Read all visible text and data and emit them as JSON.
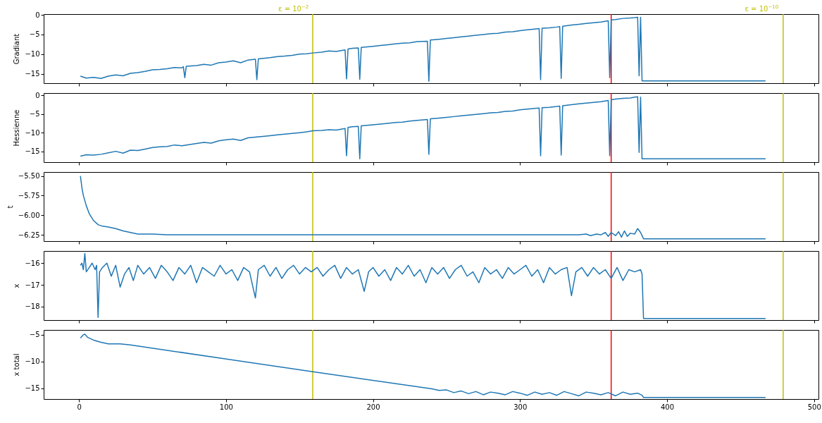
{
  "chart_data": [
    {
      "type": "line",
      "ylabel": "Gradiant",
      "xlim": [
        -24,
        503
      ],
      "xticks": [
        0,
        100,
        200,
        300,
        400,
        500
      ],
      "ylim": [
        -17.4,
        0.2
      ],
      "yticks": [
        -15,
        -10,
        -5,
        0
      ],
      "tick_labels": "y",
      "ref_lines": [
        {
          "axis": "x",
          "value": 159,
          "color": "#bfbf00"
        },
        {
          "axis": "x",
          "value": 362,
          "color": "#ff0000"
        },
        {
          "axis": "x",
          "value": 479,
          "color": "#bfbf00"
        }
      ],
      "annotations": [
        "ε = 10$^{−2}$",
        "ε = 10$^{−10}$"
      ],
      "series": [
        {
          "color": "#1f77b4",
          "x": [
            1,
            5,
            10,
            15,
            20,
            25,
            30,
            35,
            40,
            45,
            50,
            55,
            60,
            65,
            70,
            71,
            72,
            73,
            80,
            85,
            90,
            95,
            100,
            105,
            110,
            115,
            120,
            121,
            122,
            130,
            135,
            140,
            145,
            150,
            155,
            159,
            165,
            170,
            175,
            181,
            182,
            183,
            186,
            190,
            191,
            192,
            200,
            205,
            210,
            215,
            220,
            225,
            230,
            237,
            238,
            239,
            245,
            250,
            255,
            260,
            265,
            270,
            275,
            280,
            285,
            290,
            295,
            300,
            305,
            310,
            313,
            314,
            315,
            320,
            325,
            327,
            328,
            329,
            335,
            340,
            345,
            350,
            355,
            360,
            361,
            362,
            365,
            370,
            375,
            378,
            380,
            381,
            382,
            383,
            384,
            467
          ],
          "values": [
            -15.6,
            -16.1,
            -15.9,
            -16.2,
            -15.6,
            -15.3,
            -15.5,
            -14.9,
            -14.7,
            -14.4,
            -14.0,
            -13.9,
            -13.7,
            -13.4,
            -13.5,
            -13.2,
            -16.0,
            -13.1,
            -12.9,
            -12.6,
            -12.8,
            -12.2,
            -12.0,
            -11.7,
            -12.2,
            -11.5,
            -11.3,
            -16.5,
            -11.2,
            -10.9,
            -10.6,
            -10.5,
            -10.3,
            -10.0,
            -9.9,
            -9.7,
            -9.5,
            -9.2,
            -9.3,
            -8.9,
            -16.3,
            -8.7,
            -8.5,
            -8.4,
            -16.4,
            -8.3,
            -8.0,
            -7.8,
            -7.6,
            -7.4,
            -7.2,
            -7.1,
            -6.8,
            -6.7,
            -16.9,
            -6.4,
            -6.2,
            -6.0,
            -5.8,
            -5.6,
            -5.4,
            -5.2,
            -5.0,
            -4.8,
            -4.7,
            -4.4,
            -4.3,
            -4.0,
            -3.8,
            -3.6,
            -3.5,
            -16.5,
            -3.4,
            -3.3,
            -3.1,
            -3.0,
            -16.2,
            -2.9,
            -2.6,
            -2.4,
            -2.2,
            -2.0,
            -1.8,
            -1.5,
            -16.0,
            -1.3,
            -1.2,
            -0.9,
            -0.8,
            -0.7,
            -0.6,
            -15.5,
            -0.6,
            -16.8,
            -16.8,
            -16.8
          ]
        }
      ]
    },
    {
      "type": "line",
      "ylabel": "Hessienne",
      "xlim": [
        -24,
        503
      ],
      "xticks": [
        0,
        100,
        200,
        300,
        400,
        500
      ],
      "ylim": [
        -17.9,
        0.6
      ],
      "yticks": [
        -15,
        -10,
        -5,
        0
      ],
      "tick_labels": "y",
      "ref_lines": [
        {
          "axis": "x",
          "value": 159,
          "color": "#bfbf00"
        },
        {
          "axis": "x",
          "value": 362,
          "color": "#ff0000"
        },
        {
          "axis": "x",
          "value": 479,
          "color": "#bfbf00"
        }
      ],
      "series": [
        {
          "color": "#1f77b4",
          "x": [
            1,
            5,
            10,
            15,
            20,
            25,
            30,
            35,
            40,
            45,
            50,
            55,
            60,
            65,
            70,
            80,
            85,
            90,
            95,
            100,
            105,
            110,
            115,
            120,
            130,
            135,
            140,
            145,
            150,
            155,
            159,
            165,
            170,
            175,
            181,
            182,
            183,
            186,
            190,
            191,
            192,
            200,
            205,
            210,
            215,
            220,
            225,
            230,
            237,
            238,
            239,
            245,
            250,
            255,
            260,
            265,
            270,
            275,
            280,
            285,
            290,
            295,
            300,
            305,
            310,
            313,
            314,
            315,
            320,
            325,
            327,
            328,
            329,
            335,
            340,
            345,
            350,
            355,
            360,
            361,
            362,
            365,
            370,
            375,
            378,
            380,
            381,
            382,
            383,
            384,
            467
          ],
          "values": [
            -16.3,
            -15.9,
            -16.0,
            -15.8,
            -15.4,
            -15.0,
            -15.5,
            -14.7,
            -14.8,
            -14.4,
            -14.0,
            -13.8,
            -13.7,
            -13.3,
            -13.5,
            -12.9,
            -12.6,
            -12.8,
            -12.2,
            -11.9,
            -11.7,
            -12.1,
            -11.4,
            -11.2,
            -10.8,
            -10.6,
            -10.4,
            -10.2,
            -10.0,
            -9.8,
            -9.5,
            -9.4,
            -9.2,
            -9.3,
            -8.9,
            -16.2,
            -8.6,
            -8.4,
            -8.3,
            -17.0,
            -8.2,
            -7.9,
            -7.7,
            -7.5,
            -7.3,
            -7.2,
            -6.9,
            -6.7,
            -6.5,
            -15.8,
            -6.3,
            -6.1,
            -5.9,
            -5.7,
            -5.5,
            -5.3,
            -5.1,
            -4.9,
            -4.7,
            -4.6,
            -4.3,
            -4.2,
            -3.9,
            -3.7,
            -3.5,
            -3.4,
            -16.2,
            -3.3,
            -3.2,
            -3.0,
            -2.9,
            -16.0,
            -2.8,
            -2.5,
            -2.3,
            -2.1,
            -1.9,
            -1.7,
            -1.4,
            -16.2,
            -1.2,
            -1.0,
            -0.8,
            -0.7,
            -0.5,
            -0.4,
            -15.3,
            -0.5,
            -17.0,
            -17.0,
            -17.0
          ]
        }
      ]
    },
    {
      "type": "line",
      "ylabel": "t",
      "xlim": [
        -24,
        503
      ],
      "xticks": [
        0,
        100,
        200,
        300,
        400,
        500
      ],
      "ylim": [
        -6.33,
        -5.45
      ],
      "yticks": [
        {
          "value": -6.25,
          "label": "−6.25"
        },
        {
          "value": -6,
          "label": "−6.00"
        },
        {
          "value": -5.75,
          "label": "−5.75"
        },
        {
          "value": -5.5,
          "label": "−5.50"
        }
      ],
      "tick_labels": "y",
      "ref_lines": [
        {
          "axis": "x",
          "value": 159,
          "color": "#bfbf00"
        },
        {
          "axis": "x",
          "value": 362,
          "color": "#ff0000"
        },
        {
          "axis": "x",
          "value": 479,
          "color": "#bfbf00"
        }
      ],
      "series": [
        {
          "color": "#1f77b4",
          "x": [
            1,
            2,
            3,
            5,
            7,
            10,
            13,
            16,
            20,
            25,
            30,
            35,
            40,
            50,
            60,
            340,
            345,
            348,
            352,
            355,
            358,
            360,
            362,
            365,
            367,
            369,
            371,
            373,
            375,
            378,
            380,
            382,
            384,
            467
          ],
          "values": [
            -5.5,
            -5.65,
            -5.75,
            -5.88,
            -5.98,
            -6.07,
            -6.12,
            -6.14,
            -6.15,
            -6.17,
            -6.2,
            -6.22,
            -6.24,
            -6.24,
            -6.25,
            -6.25,
            -6.24,
            -6.26,
            -6.24,
            -6.25,
            -6.22,
            -6.27,
            -6.22,
            -6.26,
            -6.21,
            -6.28,
            -6.2,
            -6.27,
            -6.23,
            -6.24,
            -6.17,
            -6.22,
            -6.3,
            -6.3
          ]
        }
      ]
    },
    {
      "type": "line",
      "ylabel": "x",
      "xlim": [
        -24,
        503
      ],
      "xticks": [
        0,
        100,
        200,
        300,
        400,
        500
      ],
      "ylim": [
        -18.62,
        -15.44
      ],
      "yticks": [
        -18,
        -17,
        -16
      ],
      "tick_labels": "y",
      "ref_lines": [
        {
          "axis": "x",
          "value": 159,
          "color": "#bfbf00"
        },
        {
          "axis": "x",
          "value": 362,
          "color": "#ff0000"
        },
        {
          "axis": "x",
          "value": 479,
          "color": "#bfbf00"
        }
      ],
      "series": [
        {
          "color": "#1f77b4",
          "x": [
            1,
            2,
            3,
            4,
            5,
            7,
            9,
            11,
            12,
            13,
            14,
            16,
            19,
            22,
            25,
            28,
            31,
            34,
            37,
            40,
            44,
            48,
            52,
            56,
            60,
            64,
            68,
            72,
            76,
            80,
            84,
            88,
            92,
            96,
            100,
            104,
            108,
            112,
            116,
            120,
            122,
            126,
            130,
            134,
            138,
            142,
            146,
            150,
            154,
            158,
            162,
            166,
            170,
            174,
            178,
            182,
            186,
            190,
            194,
            197,
            200,
            204,
            208,
            212,
            216,
            220,
            224,
            228,
            232,
            236,
            240,
            244,
            248,
            252,
            256,
            260,
            264,
            268,
            272,
            276,
            280,
            284,
            288,
            292,
            296,
            300,
            304,
            308,
            312,
            316,
            320,
            324,
            328,
            332,
            335,
            338,
            342,
            346,
            350,
            354,
            358,
            362,
            366,
            370,
            374,
            378,
            382,
            383,
            384,
            467
          ],
          "values": [
            -16.1,
            -16.0,
            -16.3,
            -15.55,
            -16.4,
            -16.2,
            -16.0,
            -16.3,
            -16.1,
            -18.5,
            -16.4,
            -16.2,
            -16.0,
            -16.6,
            -16.1,
            -17.1,
            -16.5,
            -16.2,
            -16.8,
            -16.1,
            -16.5,
            -16.2,
            -16.7,
            -16.1,
            -16.4,
            -16.8,
            -16.2,
            -16.5,
            -16.1,
            -16.9,
            -16.2,
            -16.4,
            -16.6,
            -16.1,
            -16.5,
            -16.3,
            -16.8,
            -16.2,
            -16.4,
            -17.6,
            -16.3,
            -16.1,
            -16.6,
            -16.2,
            -16.7,
            -16.3,
            -16.1,
            -16.5,
            -16.2,
            -16.4,
            -16.2,
            -16.6,
            -16.3,
            -16.1,
            -16.7,
            -16.2,
            -16.5,
            -16.3,
            -17.3,
            -16.4,
            -16.2,
            -16.6,
            -16.3,
            -16.8,
            -16.2,
            -16.5,
            -16.1,
            -16.6,
            -16.3,
            -16.9,
            -16.2,
            -16.5,
            -16.2,
            -16.7,
            -16.3,
            -16.1,
            -16.6,
            -16.4,
            -16.9,
            -16.2,
            -16.5,
            -16.3,
            -16.7,
            -16.2,
            -16.5,
            -16.3,
            -16.1,
            -16.6,
            -16.3,
            -16.9,
            -16.2,
            -16.5,
            -16.3,
            -16.2,
            -17.5,
            -16.4,
            -16.2,
            -16.6,
            -16.2,
            -16.5,
            -16.3,
            -16.7,
            -16.2,
            -16.8,
            -16.3,
            -16.4,
            -16.3,
            -16.5,
            -18.55,
            -18.55
          ]
        }
      ]
    },
    {
      "type": "line",
      "ylabel": "x total",
      "xlim": [
        -24,
        503
      ],
      "xticks": [
        0,
        100,
        200,
        300,
        400,
        500
      ],
      "ylim": [
        -17.0,
        -4.1
      ],
      "yticks": [
        -15,
        -10,
        -5
      ],
      "ref_lines": [
        {
          "axis": "x",
          "value": 159,
          "color": "#bfbf00"
        },
        {
          "axis": "x",
          "value": 362,
          "color": "#ff0000"
        },
        {
          "axis": "x",
          "value": 479,
          "color": "#bfbf00"
        }
      ],
      "series": [
        {
          "color": "#1f77b4",
          "x": [
            1,
            3,
            4,
            6,
            10,
            15,
            20,
            28,
            35,
            159,
            230,
            240,
            245,
            250,
            255,
            260,
            265,
            270,
            275,
            280,
            285,
            290,
            295,
            300,
            305,
            310,
            315,
            320,
            325,
            330,
            335,
            340,
            345,
            350,
            355,
            360,
            365,
            370,
            375,
            380,
            383,
            384,
            467
          ],
          "values": [
            -5.6,
            -5.0,
            -4.9,
            -5.5,
            -6.0,
            -6.4,
            -6.7,
            -6.7,
            -6.9,
            -11.9,
            -14.7,
            -15.1,
            -15.4,
            -15.3,
            -15.8,
            -15.5,
            -16.0,
            -15.6,
            -16.2,
            -15.7,
            -15.9,
            -16.2,
            -15.6,
            -15.9,
            -16.3,
            -15.7,
            -16.1,
            -15.8,
            -16.3,
            -15.6,
            -16.0,
            -16.4,
            -15.7,
            -15.9,
            -16.2,
            -15.8,
            -16.4,
            -15.7,
            -16.1,
            -15.9,
            -16.3,
            -16.7,
            -16.7
          ]
        }
      ]
    }
  ]
}
